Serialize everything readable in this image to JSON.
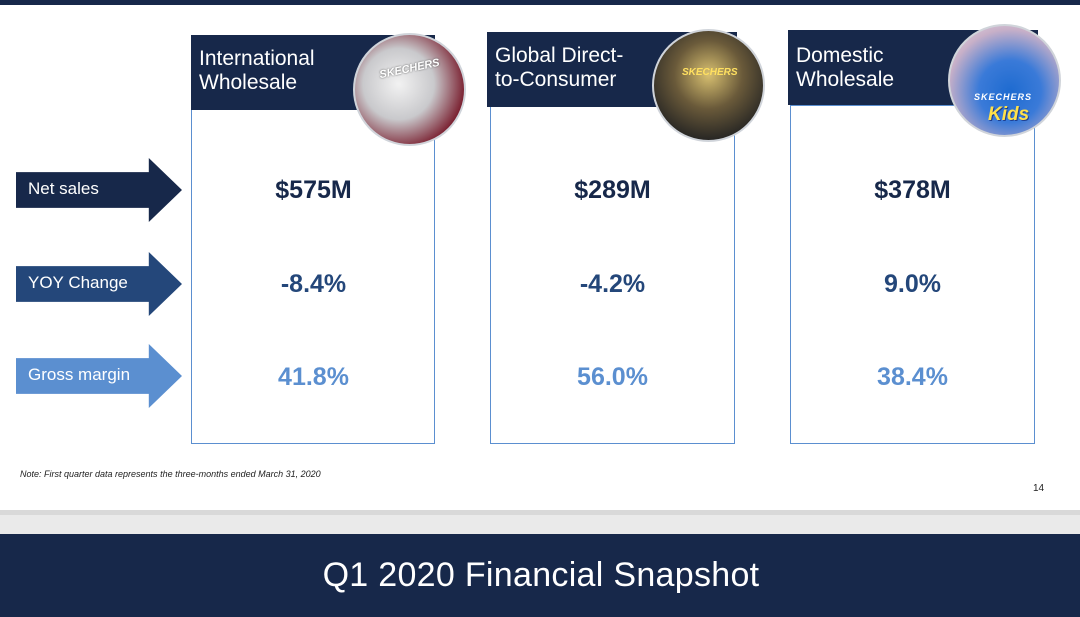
{
  "slide": {
    "title": "Q1 2020 Financial Snapshot",
    "note": "Note: First quarter data represents the three-months ended March 31, 2020",
    "page_number": "14"
  },
  "row_labels": [
    "Net sales",
    "YOY Change",
    "Gross margin"
  ],
  "segments": [
    {
      "title_line1": "International",
      "title_line2": "Wholesale",
      "photo_text": "SKECHERS",
      "photo_text2": "",
      "net_sales": "$575M",
      "yoy_change": "-8.4%",
      "gross_margin": "41.8%"
    },
    {
      "title_line1": "Global Direct-",
      "title_line2": "to-Consumer",
      "photo_text": "SKECHERS",
      "photo_text2": "",
      "net_sales": "$289M",
      "yoy_change": "-4.2%",
      "gross_margin": "56.0%"
    },
    {
      "title_line1": "Domestic",
      "title_line2": "Wholesale",
      "photo_text": "SKECHERS",
      "photo_text2": "Kids",
      "net_sales": "$378M",
      "yoy_change": "9.0%",
      "gross_margin": "38.4%"
    }
  ],
  "colors": {
    "navy": "#17284a",
    "mid_blue": "#24477a",
    "light_blue": "#5b8fd0"
  }
}
